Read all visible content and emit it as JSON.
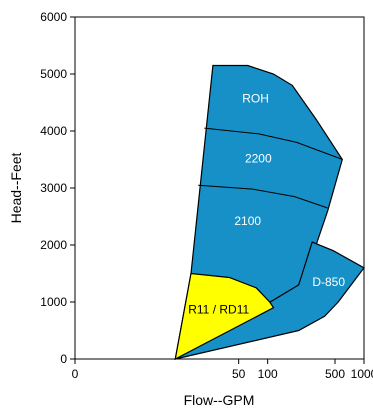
{
  "chart_data": {
    "type": "area",
    "title": "",
    "xlabel": "Flow--GPM",
    "ylabel": "Head--Feet",
    "x_scale": "log",
    "x_ticks": [
      {
        "value": 1,
        "label": "0"
      },
      {
        "value": 50,
        "label": "50"
      },
      {
        "value": 100,
        "label": "100"
      },
      {
        "value": 500,
        "label": "500"
      },
      {
        "value": 1000,
        "label": "1000"
      }
    ],
    "y_ticks": [
      0,
      1000,
      2000,
      3000,
      4000,
      5000,
      6000
    ],
    "ylim": [
      0,
      6000
    ],
    "grid": false,
    "colors": {
      "pump_region": "#1690c6",
      "small_pump_region": "#ffff00",
      "outline": "#000000",
      "label_light": "#ffffff",
      "label_dark": "#000000"
    },
    "regions": [
      {
        "name": "ROH",
        "fill": "#1690c6",
        "label_at": {
          "x": 75,
          "y": 4500
        },
        "label_color": "#ffffff",
        "boundary": [
          [
            11,
            0
          ],
          [
            16,
            1500
          ],
          [
            27,
            5150
          ],
          [
            62,
            5150
          ],
          [
            115,
            5000
          ],
          [
            180,
            4800
          ],
          [
            320,
            4200
          ],
          [
            595,
            3500
          ],
          [
            420,
            2600
          ],
          [
            290,
            1800
          ],
          [
            210,
            1300
          ],
          [
            120,
            950
          ],
          [
            50,
            450
          ],
          [
            11,
            0
          ]
        ]
      },
      {
        "name": "D-850",
        "fill": "#1690c6",
        "label_at": {
          "x": 430,
          "y": 1280
        },
        "label_color": "#ffffff",
        "boundary": [
          [
            11,
            0
          ],
          [
            210,
            1300
          ],
          [
            290,
            2050
          ],
          [
            480,
            1900
          ],
          [
            1000,
            1600
          ],
          [
            540,
            1000
          ],
          [
            390,
            750
          ],
          [
            210,
            500
          ],
          [
            11,
            0
          ]
        ]
      },
      {
        "name": "R11 / RD11",
        "fill": "#ffff00",
        "label_at": {
          "x": 31,
          "y": 800
        },
        "label_color": "#000000",
        "boundary": [
          [
            16,
            1500
          ],
          [
            40,
            1430
          ],
          [
            76,
            1250
          ],
          [
            105,
            1000
          ],
          [
            115,
            900
          ],
          [
            11,
            0
          ]
        ]
      }
    ],
    "band_lines": [
      {
        "name": "2200",
        "label_at": {
          "x": 80,
          "y": 3450
        },
        "points": [
          [
            22,
            4050
          ],
          [
            80,
            3950
          ],
          [
            200,
            3800
          ],
          [
            600,
            3500
          ]
        ]
      },
      {
        "name": "2100",
        "label_at": {
          "x": 62,
          "y": 2350
        },
        "points": [
          [
            19,
            3050
          ],
          [
            70,
            2980
          ],
          [
            190,
            2850
          ],
          [
            420,
            2650
          ]
        ]
      }
    ]
  }
}
